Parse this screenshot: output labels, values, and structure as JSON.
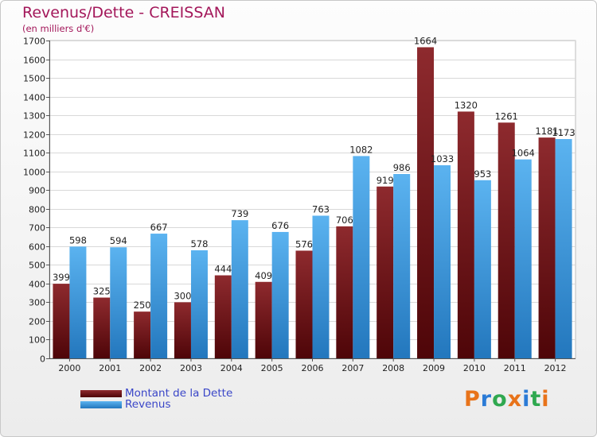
{
  "chart_data": {
    "type": "bar",
    "title": "Revenus/Dette - CREISSAN",
    "subtitle": "(en milliers d'€)",
    "categories": [
      "2000",
      "2001",
      "2002",
      "2003",
      "2004",
      "2005",
      "2006",
      "2007",
      "2008",
      "2009",
      "2010",
      "2011",
      "2012"
    ],
    "series": [
      {
        "name": "Montant de la Dette",
        "color": "#7a1a1f",
        "values": [
          399,
          325,
          250,
          300,
          444,
          409,
          576,
          706,
          919,
          1664,
          1320,
          1261,
          1181
        ]
      },
      {
        "name": "Revenus",
        "color": "#3d9be0",
        "values": [
          598,
          594,
          667,
          578,
          739,
          676,
          763,
          1082,
          986,
          1033,
          953,
          1064,
          1173
        ]
      }
    ],
    "ylim": [
      0,
      1700
    ],
    "yticks": [
      0,
      100,
      200,
      300,
      400,
      500,
      600,
      700,
      800,
      900,
      1000,
      1100,
      1200,
      1300,
      1400,
      1500,
      1600,
      1700
    ],
    "grid": true,
    "legend_position": "bottom-left"
  },
  "logo": {
    "text": "Proxiti",
    "colors": [
      "#e8731a",
      "#2b7bd6",
      "#2fa84f"
    ]
  }
}
